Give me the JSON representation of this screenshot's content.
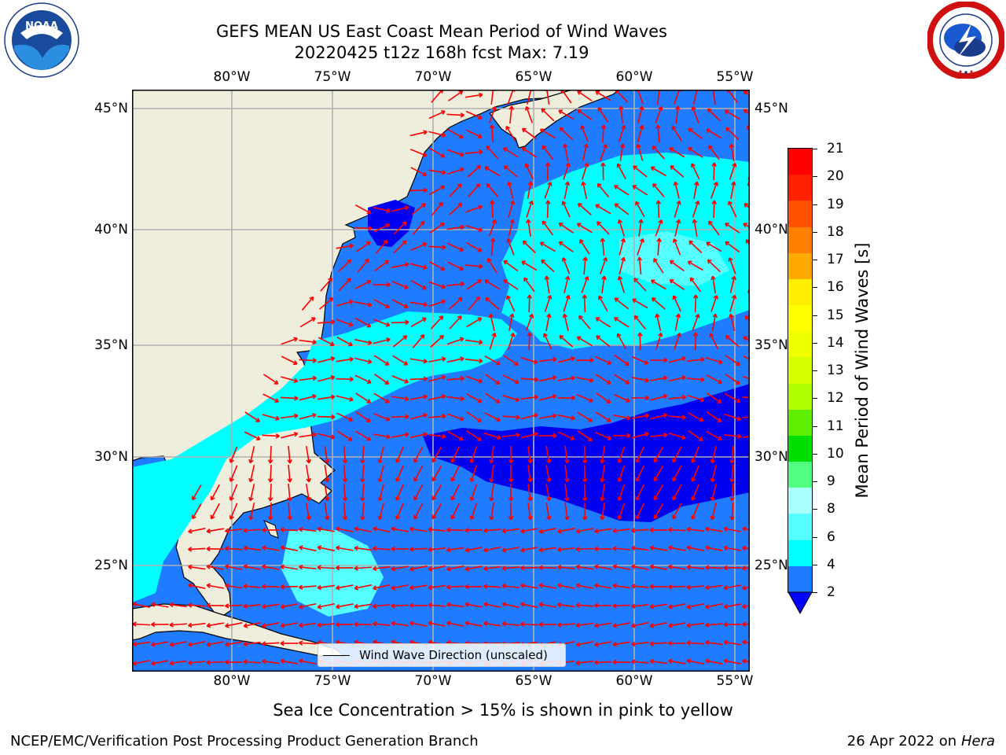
{
  "header": {
    "title_line1": "GEFS MEAN US East Coast Mean Period of Wind Waves",
    "title_line2": "20220425 t12z 168h fcst   Max: 7.19",
    "noaa_logo_text": "NOAA",
    "nws_logo_text": "NATIONAL WEATHER SERVICE"
  },
  "map": {
    "lon_ticks": [
      "80°W",
      "75°W",
      "70°W",
      "65°W",
      "60°W",
      "55°W"
    ],
    "lat_ticks": [
      "45°N",
      "40°N",
      "35°N",
      "30°N",
      "25°N"
    ],
    "legend_label": "Wind Wave Direction (unscaled)",
    "colors": {
      "land": "#efeddc",
      "ocean_2_4": "#1f7bff",
      "ocean_lt2": "#0000f0",
      "ocean_4_6": "#00ffff",
      "ocean_6_8": "#55ffff",
      "arrow": "#ff0000",
      "grid": "#b0b0b0"
    }
  },
  "colorbar": {
    "label": "Mean Period of Wind Waves [s]",
    "ticks": [
      "21",
      "20",
      "19",
      "18",
      "17",
      "16",
      "15",
      "14",
      "13",
      "12",
      "11",
      "10",
      "9",
      "8",
      "6",
      "4",
      "2"
    ],
    "colors": [
      "#ff0000",
      "#ff2000",
      "#ff5000",
      "#ff8000",
      "#ffaa00",
      "#ffee00",
      "#ffff00",
      "#f0ff00",
      "#d8ff00",
      "#b0ff00",
      "#60ee00",
      "#00dd00",
      "#50ff80",
      "#aaffff",
      "#55ffff",
      "#00ffff",
      "#1e7bff"
    ],
    "under_color": "#0000ff"
  },
  "caption": "Sea Ice Concentration > 15% is shown in pink to yellow",
  "footer": {
    "left": "NCEP/EMC/Verification Post Processing Product Generation Branch",
    "right_date": "26 Apr 2022 on",
    "right_host": "Hera"
  }
}
